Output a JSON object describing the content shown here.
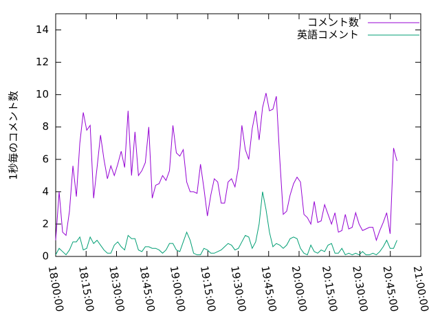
{
  "chart_data": {
    "type": "line",
    "y_label": "1秒毎のコメント数",
    "x": [
      0,
      1.7,
      3.4,
      5.1,
      6.8,
      8.5,
      10.2,
      11.9,
      13.6,
      15.3,
      17,
      18.7,
      20.4,
      22.1,
      23.8,
      25.5,
      27.2,
      28.9,
      30.6,
      32.3,
      34,
      35.7,
      37.4,
      39.1,
      40.8,
      42.5,
      44.2,
      45.9,
      47.6,
      49.3,
      51,
      52.7,
      54.4,
      56.1,
      57.8,
      59.5,
      61.2,
      62.9,
      64.6,
      66.3,
      68,
      69.7,
      71.4,
      73.1,
      74.8,
      76.5,
      78.2,
      79.9,
      81.6,
      83.3,
      85,
      86.7,
      88.4,
      90.1,
      91.8,
      93.5,
      95.2,
      96.9,
      98.6,
      100.3,
      102,
      103.7,
      105.4,
      107.1,
      108.8,
      110.5,
      112.2,
      113.9,
      115.6,
      117.3,
      119,
      120.7,
      122.4,
      124.1,
      125.8,
      127.5,
      129.2,
      130.9,
      132.6,
      134.3,
      136,
      137.7,
      139.4,
      141.1,
      142.8,
      144.5,
      146.2,
      147.9,
      149.6,
      151.3,
      153,
      154.7,
      156.4,
      158.1,
      159.8,
      161.5,
      163.2,
      164.9,
      166.6,
      168.3
    ],
    "series": [
      {
        "name": "コメント数",
        "color": "#9400d3",
        "values": [
          1.0,
          4,
          1.5,
          1.3,
          2.8,
          5.6,
          3.7,
          7,
          8.9,
          7.8,
          8.1,
          3.6,
          5.5,
          7.5,
          6,
          4.8,
          5.6,
          5,
          5.7,
          6.5,
          5.5,
          9,
          5,
          7.7,
          5,
          5.3,
          5.8,
          8,
          3.6,
          4.4,
          4.5,
          5,
          4.7,
          5.3,
          8.1,
          6.4,
          6.2,
          6.6,
          4.6,
          4,
          4,
          3.9,
          5.7,
          4.2,
          2.5,
          3.8,
          4.8,
          4.6,
          3.3,
          3.3,
          4.6,
          4.8,
          4.3,
          5.5,
          8.1,
          6.6,
          6,
          7.9,
          9,
          7.2,
          9.2,
          10.1,
          9,
          9.1,
          9.9,
          6,
          2.6,
          2.8,
          3.8,
          4.5,
          4.9,
          4.6,
          2.6,
          2.4,
          2,
          3.4,
          2.1,
          2.2,
          3.2,
          2.6,
          2,
          2.7,
          1.5,
          1.6,
          2.6,
          1.7,
          1.8,
          2.7,
          2,
          1.6,
          1.7,
          1.8,
          1.8,
          1,
          1.6,
          2.1,
          2.7,
          1.4,
          6.7,
          5.9
        ]
      },
      {
        "name": "英語コメント",
        "color": "#009e73",
        "values": [
          0.1,
          0.5,
          0.3,
          0.1,
          0.4,
          0.9,
          0.9,
          1.2,
          0.4,
          0.5,
          1.2,
          0.8,
          1.0,
          0.7,
          0.4,
          0.2,
          0.2,
          0.7,
          0.9,
          0.6,
          0.4,
          1.3,
          1.1,
          1.1,
          0.4,
          0.3,
          0.6,
          0.6,
          0.5,
          0.5,
          0.4,
          0.2,
          0.4,
          0.8,
          0.8,
          0.4,
          0.3,
          0.9,
          1.5,
          1.0,
          0.2,
          0.1,
          0.1,
          0.5,
          0.4,
          0.2,
          0.2,
          0.3,
          0.4,
          0.6,
          0.8,
          0.7,
          0.4,
          0.5,
          0.9,
          1.3,
          1.2,
          0.5,
          0.9,
          2.0,
          4.0,
          2.9,
          1.5,
          0.6,
          0.8,
          0.7,
          0.5,
          0.7,
          1.1,
          1.2,
          1.1,
          0.5,
          0.2,
          0.1,
          0.7,
          0.3,
          0.2,
          0.4,
          0.3,
          0.7,
          0.8,
          0.2,
          0.2,
          0.5,
          0.1,
          0.2,
          0.1,
          0.2,
          0.1,
          0.3,
          0.1,
          0.1,
          0.2,
          0.1,
          0.3,
          0.6,
          1.0,
          0.5,
          0.5,
          1.0
        ]
      }
    ],
    "xlim": [
      0,
      180
    ],
    "xticks": [
      {
        "value": 0,
        "label": "18:00:00"
      },
      {
        "value": 15,
        "label": "18:15:00"
      },
      {
        "value": 30,
        "label": "18:30:00"
      },
      {
        "value": 45,
        "label": "18:45:00"
      },
      {
        "value": 60,
        "label": "19:00:00"
      },
      {
        "value": 75,
        "label": "19:15:00"
      },
      {
        "value": 90,
        "label": "19:30:00"
      },
      {
        "value": 105,
        "label": "19:45:00"
      },
      {
        "value": 120,
        "label": "20:00:00"
      },
      {
        "value": 135,
        "label": "20:15:00"
      },
      {
        "value": 150,
        "label": "20:30:00"
      },
      {
        "value": 165,
        "label": "20:45:00"
      },
      {
        "value": 180,
        "label": "21:00:00"
      }
    ],
    "ylim": [
      0,
      15
    ],
    "yticks": [
      0,
      2,
      4,
      6,
      8,
      10,
      12,
      14
    ],
    "legend": "top-right"
  }
}
